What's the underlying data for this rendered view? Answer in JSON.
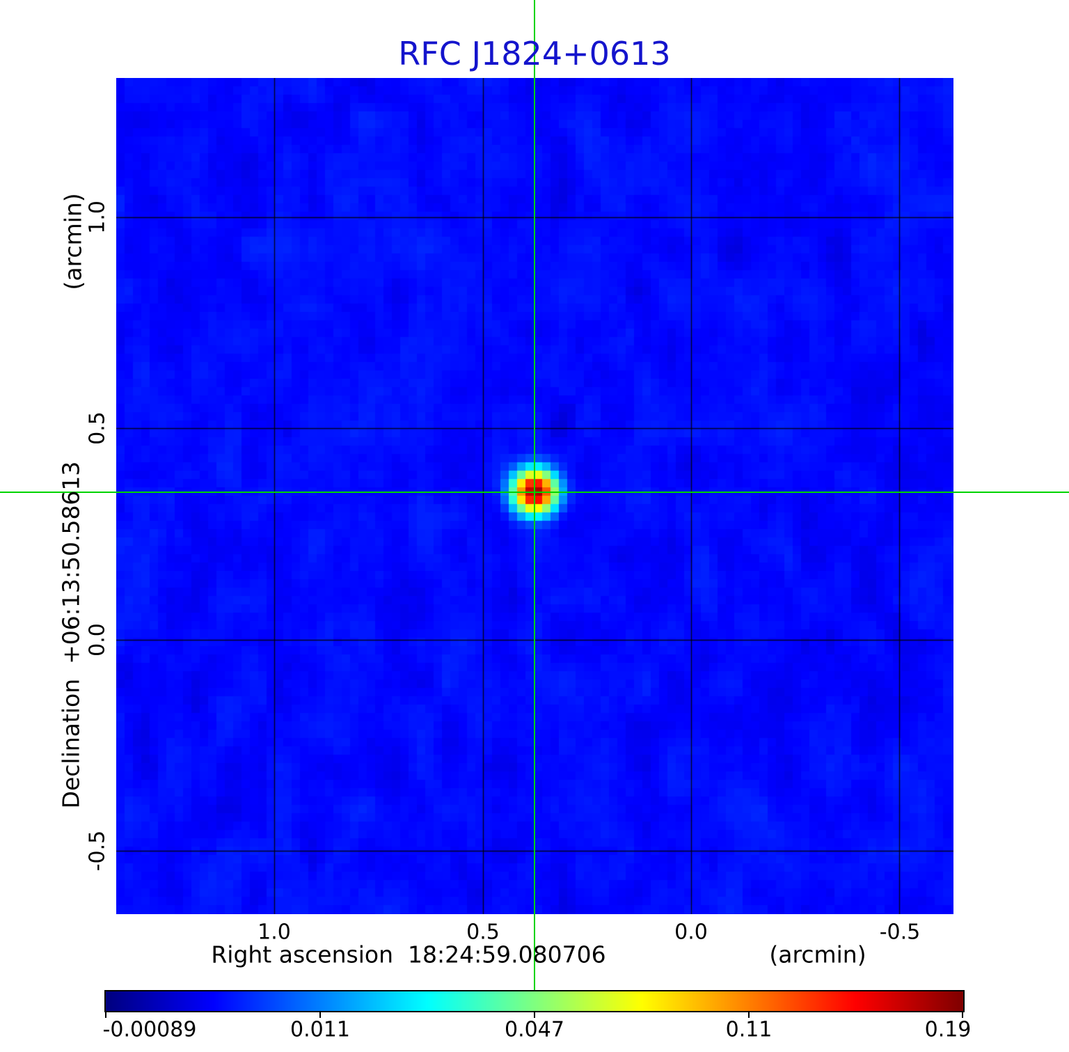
{
  "title": "RFC J1824+0613",
  "axes": {
    "x": {
      "label": "Right ascension  18:24:59.080706",
      "unit": "(arcmin)",
      "ticks": [
        "1.0",
        "0.5",
        "0.0",
        "-0.5"
      ]
    },
    "y": {
      "label": "Declination  +06:13:50.58613",
      "unit": "(arcmin)",
      "ticks": [
        "1.0",
        "0.5",
        "0.0",
        "-0.5"
      ]
    }
  },
  "colorbar": {
    "ticks": [
      "-0.00089",
      "0.011",
      "0.047",
      "0.11",
      "0.19"
    ]
  },
  "colors": {
    "title_blue": "#1414cc",
    "crosshair_green": "#00d400",
    "background_blue": "#0018e8",
    "grid_black": "#000000"
  },
  "chart_data": {
    "type": "heatmap",
    "title": "RFC J1824+0613",
    "xlabel": "Right ascension  18:24:59.080706 (arcmin)",
    "ylabel": "Declination  +06:13:50.58613 (arcmin)",
    "xlim": [
      1.38,
      -0.63
    ],
    "ylim": [
      -0.65,
      1.33
    ],
    "x_ticks": [
      1.0,
      0.5,
      0.0,
      -0.5
    ],
    "y_ticks": [
      1.0,
      0.5,
      0.0,
      -0.5
    ],
    "grid": true,
    "colormap": "jet",
    "stretch": "sqrt",
    "vmin": -0.00089,
    "vmax": 0.19,
    "colorbar_ticks": [
      -0.00089,
      0.011,
      0.047,
      0.11,
      0.19
    ],
    "colorbar_position": "bottom",
    "background_rms": 0.0015,
    "pixel_size_arcmin": 0.02,
    "source": {
      "x_arcmin": 0.375,
      "y_arcmin": 0.35,
      "peak": 0.19,
      "fwhm_arcmin": 0.07
    },
    "crosshair": {
      "x_arcmin": 0.375,
      "y_arcmin": 0.35
    }
  }
}
